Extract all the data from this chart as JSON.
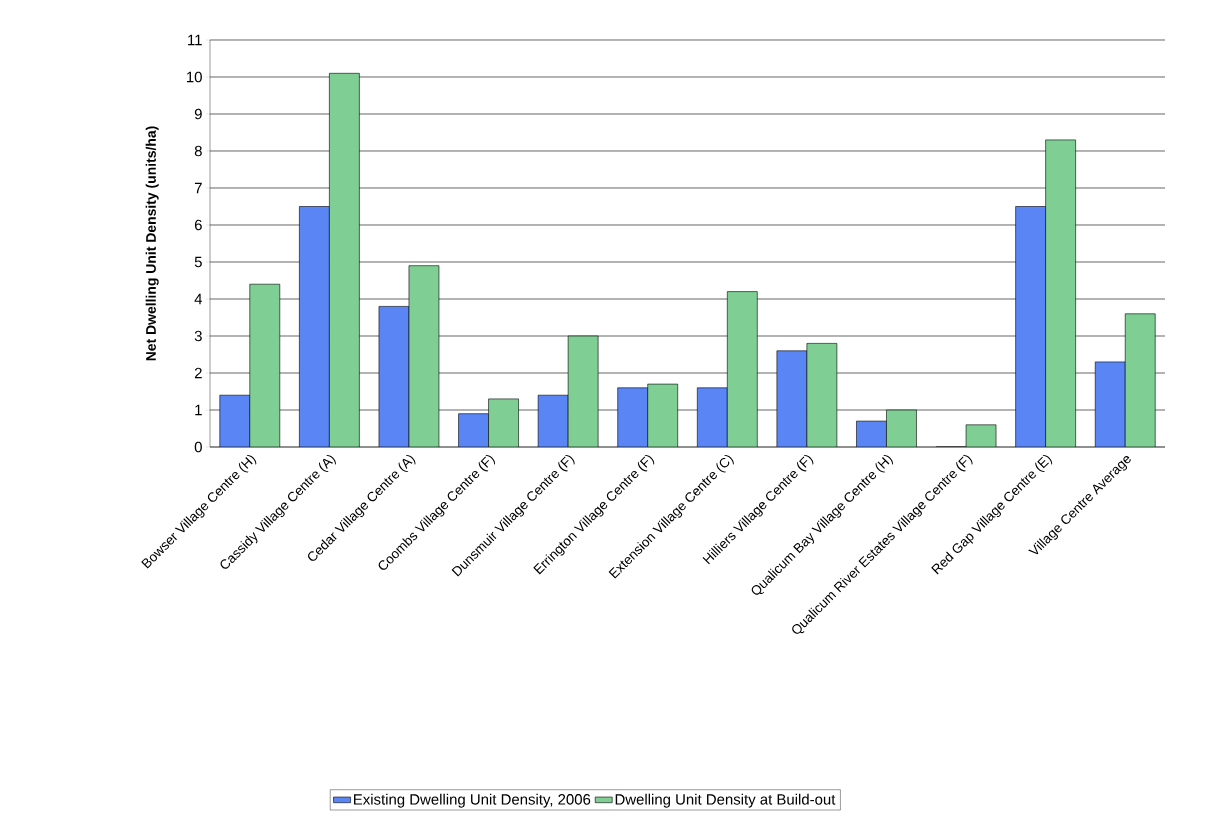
{
  "chart_data": {
    "type": "bar",
    "ylabel": "Net Dwelling Unit Density (units/ha)",
    "categories": [
      "Bowser Village Centre (H)",
      "Cassidy Village Centre (A)",
      "Cedar Village Centre (A)",
      "Coombs Village Centre (F)",
      "Dunsmuir Village Centre (F)",
      "Errington Village Centre (F)",
      "Extension Village Centre (C)",
      "Hilliers Village Centre (F)",
      "Qualicum Bay Village Centre (H)",
      "Qualicum River Estates Village Centre (F)",
      "Red Gap Village Centre (E)",
      "Village Centre Average"
    ],
    "series": [
      {
        "name": "Existing Dwelling Unit Density, 2006",
        "color": "#5a86f5",
        "values": [
          1.4,
          6.5,
          3.8,
          0.9,
          1.4,
          1.6,
          1.6,
          2.6,
          0.7,
          0.0,
          6.5,
          2.3
        ]
      },
      {
        "name": "Dwelling Unit Density at Build-out",
        "color": "#7fcf95",
        "values": [
          4.4,
          10.1,
          4.9,
          1.3,
          3.0,
          1.7,
          4.2,
          2.8,
          1.0,
          0.6,
          8.3,
          3.6
        ]
      }
    ],
    "ylim": [
      0,
      11
    ],
    "yticks": [
      0,
      1,
      2,
      3,
      4,
      5,
      6,
      7,
      8,
      9,
      10,
      11
    ],
    "grid": "y",
    "legend": "bottom"
  }
}
